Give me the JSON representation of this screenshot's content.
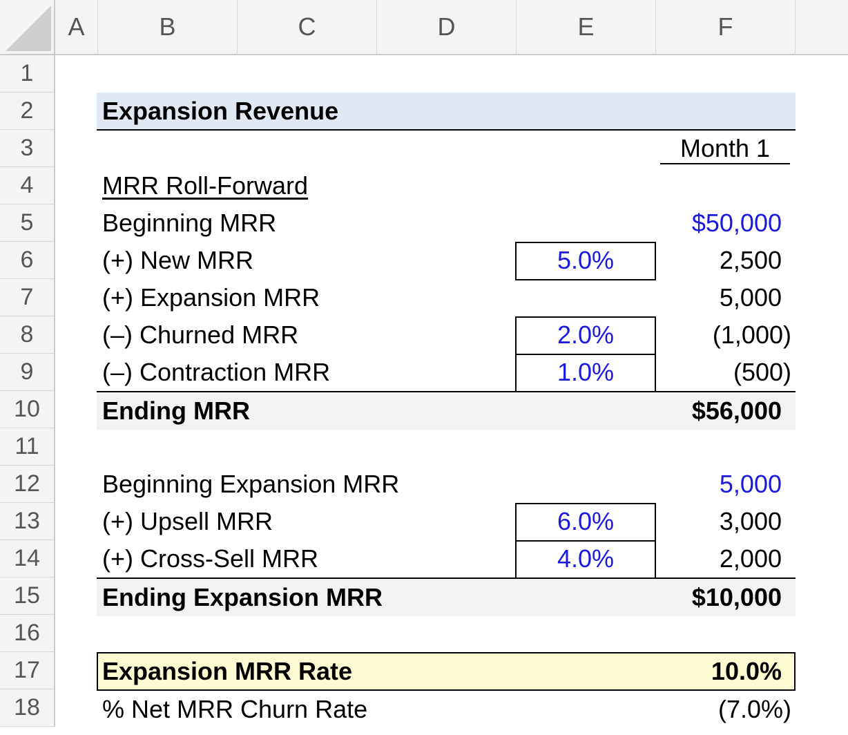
{
  "columns": [
    "A",
    "B",
    "C",
    "D",
    "E",
    "F"
  ],
  "rows": [
    "1",
    "2",
    "3",
    "4",
    "5",
    "6",
    "7",
    "8",
    "9",
    "10",
    "11",
    "12",
    "13",
    "14",
    "15",
    "16",
    "17",
    "18"
  ],
  "sheet": {
    "title": "Expansion Revenue",
    "period_header": "Month 1",
    "section_label": "MRR Roll-Forward",
    "beginning_mrr": {
      "label": "Beginning MRR",
      "value": "$50,000"
    },
    "new_mrr": {
      "label": "(+) New MRR",
      "assumption": "5.0%",
      "value": "2,500"
    },
    "expansion_mrr": {
      "label": "(+) Expansion MRR",
      "value": "5,000"
    },
    "churned_mrr": {
      "label": "(–) Churned MRR",
      "assumption": "2.0%",
      "value": "(1,000)"
    },
    "contraction_mrr": {
      "label": "(–) Contraction MRR",
      "assumption": "1.0%",
      "value": "(500)"
    },
    "ending_mrr": {
      "label": "Ending MRR",
      "value": "$56,000"
    },
    "beginning_expansion_mrr": {
      "label": "Beginning Expansion MRR",
      "value": "5,000"
    },
    "upsell_mrr": {
      "label": "(+) Upsell MRR",
      "assumption": "6.0%",
      "value": "3,000"
    },
    "cross_sell_mrr": {
      "label": "(+) Cross-Sell MRR",
      "assumption": "4.0%",
      "value": "2,000"
    },
    "ending_expansion_mrr": {
      "label": "Ending Expansion MRR",
      "value": "$10,000"
    },
    "expansion_mrr_rate": {
      "label": "Expansion MRR Rate",
      "value": "10.0%"
    },
    "net_mrr_churn_rate": {
      "label": "% Net MRR Churn Rate",
      "value": "(7.0%)"
    }
  },
  "colors": {
    "input_blue": "#1a1adf",
    "title_fill": "#e0e8f1",
    "total_fill": "#f2f2f2",
    "highlight_fill": "#fdfbd2"
  }
}
